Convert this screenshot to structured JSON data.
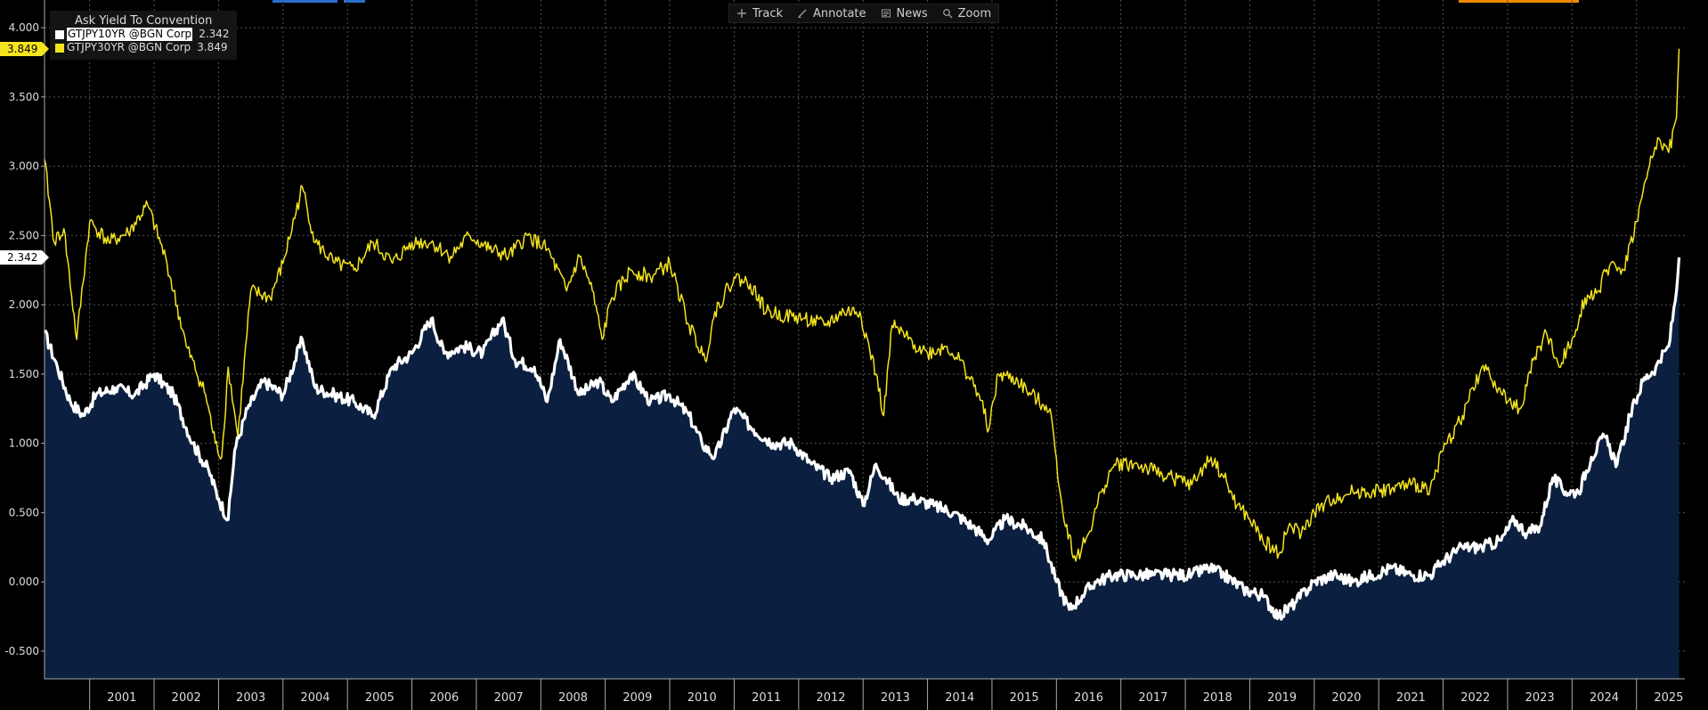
{
  "toolbar": {
    "track": "Track",
    "annotate": "Annotate",
    "news": "News",
    "zoom": "Zoom"
  },
  "legend": {
    "title": "Ask Yield To Convention",
    "series": [
      {
        "name": "GTJPY10YR @BGN Corp",
        "value": "2.342",
        "color": "#ffffff"
      },
      {
        "name": "GTJPY30YR @BGN Corp",
        "value": "3.849",
        "color": "#f4e41e"
      }
    ]
  },
  "tags": {
    "y30": "3.849",
    "y10": "2.342"
  },
  "colors": {
    "background": "#000000",
    "area_fill": "#0b2040",
    "series10": "#ffffff",
    "series30": "#f4e41e",
    "grid": "#555555",
    "axis_text": "#dddddd"
  },
  "chart_data": {
    "type": "line",
    "xlabel": "",
    "ylabel": "",
    "ylim": [
      -0.7,
      4.2
    ],
    "y_ticks": [
      -0.5,
      0.0,
      0.5,
      1.0,
      1.5,
      2.0,
      2.5,
      3.0,
      3.5,
      4.0
    ],
    "y_tick_labels": [
      "-0.500",
      "0.000",
      "0.500",
      "1.000",
      "1.500",
      "2.000",
      "2.500",
      "3.000",
      "3.500",
      "4.000"
    ],
    "x_ticks": [
      "2001",
      "2002",
      "2003",
      "2004",
      "2005",
      "2006",
      "2007",
      "2008",
      "2009",
      "2010",
      "2011",
      "2012",
      "2013",
      "2014",
      "2015",
      "2016",
      "2017",
      "2018",
      "2019",
      "2020",
      "2021",
      "2022",
      "2023",
      "2024",
      "2025"
    ],
    "grid": true,
    "series": [
      {
        "name": "GTJPY30YR @BGN Corp",
        "x": [
          2000.3,
          2000.45,
          2000.6,
          2000.8,
          2001.0,
          2001.3,
          2001.6,
          2001.9,
          2002.2,
          2002.5,
          2002.8,
          2002.95,
          2003.05,
          2003.15,
          2003.3,
          2003.5,
          2003.8,
          2004.0,
          2004.3,
          2004.5,
          2004.8,
          2005.1,
          2005.4,
          2005.7,
          2006.0,
          2006.3,
          2006.6,
          2006.9,
          2007.2,
          2007.5,
          2007.8,
          2008.1,
          2008.4,
          2008.6,
          2008.8,
          2008.95,
          2009.1,
          2009.4,
          2009.7,
          2010.0,
          2010.3,
          2010.55,
          2010.7,
          2011.0,
          2011.25,
          2011.5,
          2011.8,
          2012.1,
          2012.4,
          2012.7,
          2012.95,
          2013.2,
          2013.32,
          2013.45,
          2013.7,
          2014.0,
          2014.3,
          2014.5,
          2014.8,
          2014.95,
          2015.1,
          2015.4,
          2015.6,
          2015.9,
          2016.1,
          2016.3,
          2016.5,
          2016.7,
          2016.9,
          2017.2,
          2017.5,
          2017.8,
          2018.1,
          2018.4,
          2018.6,
          2018.8,
          2019.0,
          2019.2,
          2019.45,
          2019.6,
          2019.8,
          2020.0,
          2020.3,
          2020.6,
          2020.9,
          2021.2,
          2021.5,
          2021.8,
          2022.0,
          2022.3,
          2022.6,
          2022.8,
          2023.0,
          2023.2,
          2023.4,
          2023.6,
          2023.8,
          2024.0,
          2024.2,
          2024.4,
          2024.6,
          2024.8,
          2025.0,
          2025.2,
          2025.35,
          2025.5,
          2025.62,
          2025.66
        ],
        "values": [
          3.05,
          2.45,
          2.55,
          1.75,
          2.6,
          2.45,
          2.52,
          2.72,
          2.3,
          1.7,
          1.35,
          1.0,
          0.9,
          1.55,
          1.05,
          2.1,
          2.05,
          2.3,
          2.85,
          2.45,
          2.3,
          2.25,
          2.45,
          2.3,
          2.45,
          2.45,
          2.35,
          2.5,
          2.4,
          2.35,
          2.5,
          2.4,
          2.1,
          2.35,
          2.1,
          1.75,
          2.05,
          2.25,
          2.2,
          2.3,
          1.85,
          1.6,
          1.95,
          2.2,
          2.15,
          1.95,
          1.92,
          1.9,
          1.85,
          1.95,
          1.95,
          1.5,
          1.2,
          1.85,
          1.75,
          1.65,
          1.7,
          1.6,
          1.35,
          1.1,
          1.5,
          1.45,
          1.35,
          1.25,
          0.5,
          0.15,
          0.35,
          0.65,
          0.85,
          0.85,
          0.8,
          0.75,
          0.7,
          0.9,
          0.75,
          0.55,
          0.45,
          0.3,
          0.2,
          0.4,
          0.35,
          0.5,
          0.6,
          0.65,
          0.65,
          0.67,
          0.7,
          0.68,
          0.95,
          1.2,
          1.55,
          1.45,
          1.3,
          1.25,
          1.6,
          1.8,
          1.55,
          1.75,
          2.05,
          2.1,
          2.3,
          2.25,
          2.6,
          3.0,
          3.2,
          3.1,
          3.35,
          3.849
        ]
      },
      {
        "name": "GTJPY10YR @BGN Corp",
        "x": [
          2000.3,
          2000.5,
          2000.7,
          2000.9,
          2001.1,
          2001.4,
          2001.7,
          2002.0,
          2002.3,
          2002.6,
          2002.85,
          2003.0,
          2003.15,
          2003.25,
          2003.45,
          2003.7,
          2004.0,
          2004.3,
          2004.5,
          2004.8,
          2005.1,
          2005.4,
          2005.7,
          2006.0,
          2006.3,
          2006.5,
          2006.8,
          2007.1,
          2007.4,
          2007.6,
          2007.9,
          2008.1,
          2008.3,
          2008.6,
          2008.9,
          2009.1,
          2009.4,
          2009.7,
          2010.0,
          2010.3,
          2010.5,
          2010.7,
          2011.0,
          2011.3,
          2011.6,
          2011.9,
          2012.2,
          2012.5,
          2012.8,
          2013.0,
          2013.2,
          2013.35,
          2013.55,
          2013.8,
          2014.1,
          2014.4,
          2014.7,
          2014.95,
          2015.2,
          2015.5,
          2015.8,
          2016.0,
          2016.2,
          2016.4,
          2016.6,
          2016.9,
          2017.2,
          2017.5,
          2017.8,
          2018.1,
          2018.35,
          2018.6,
          2018.9,
          2019.2,
          2019.45,
          2019.7,
          2020.0,
          2020.3,
          2020.6,
          2020.9,
          2021.2,
          2021.5,
          2021.8,
          2022.0,
          2022.3,
          2022.6,
          2022.9,
          2023.1,
          2023.3,
          2023.5,
          2023.7,
          2023.9,
          2024.1,
          2024.3,
          2024.5,
          2024.7,
          2024.9,
          2025.1,
          2025.3,
          2025.5,
          2025.62,
          2025.66
        ],
        "values": [
          1.8,
          1.55,
          1.3,
          1.2,
          1.35,
          1.4,
          1.35,
          1.5,
          1.35,
          1.0,
          0.8,
          0.6,
          0.45,
          0.95,
          1.25,
          1.45,
          1.35,
          1.75,
          1.4,
          1.35,
          1.3,
          1.2,
          1.55,
          1.65,
          1.9,
          1.65,
          1.7,
          1.65,
          1.9,
          1.6,
          1.55,
          1.3,
          1.75,
          1.35,
          1.45,
          1.3,
          1.5,
          1.3,
          1.35,
          1.2,
          1.0,
          0.9,
          1.25,
          1.1,
          1.0,
          1.0,
          0.85,
          0.75,
          0.8,
          0.55,
          0.85,
          0.75,
          0.6,
          0.6,
          0.55,
          0.5,
          0.4,
          0.3,
          0.45,
          0.4,
          0.3,
          0.0,
          -0.2,
          -0.1,
          0.0,
          0.05,
          0.05,
          0.05,
          0.05,
          0.05,
          0.1,
          0.05,
          -0.05,
          -0.1,
          -0.25,
          -0.15,
          0.0,
          0.05,
          0.0,
          0.05,
          0.1,
          0.05,
          0.05,
          0.15,
          0.25,
          0.25,
          0.3,
          0.45,
          0.35,
          0.4,
          0.75,
          0.65,
          0.65,
          0.9,
          1.05,
          0.85,
          1.2,
          1.45,
          1.55,
          1.7,
          2.1,
          2.342
        ]
      }
    ]
  }
}
